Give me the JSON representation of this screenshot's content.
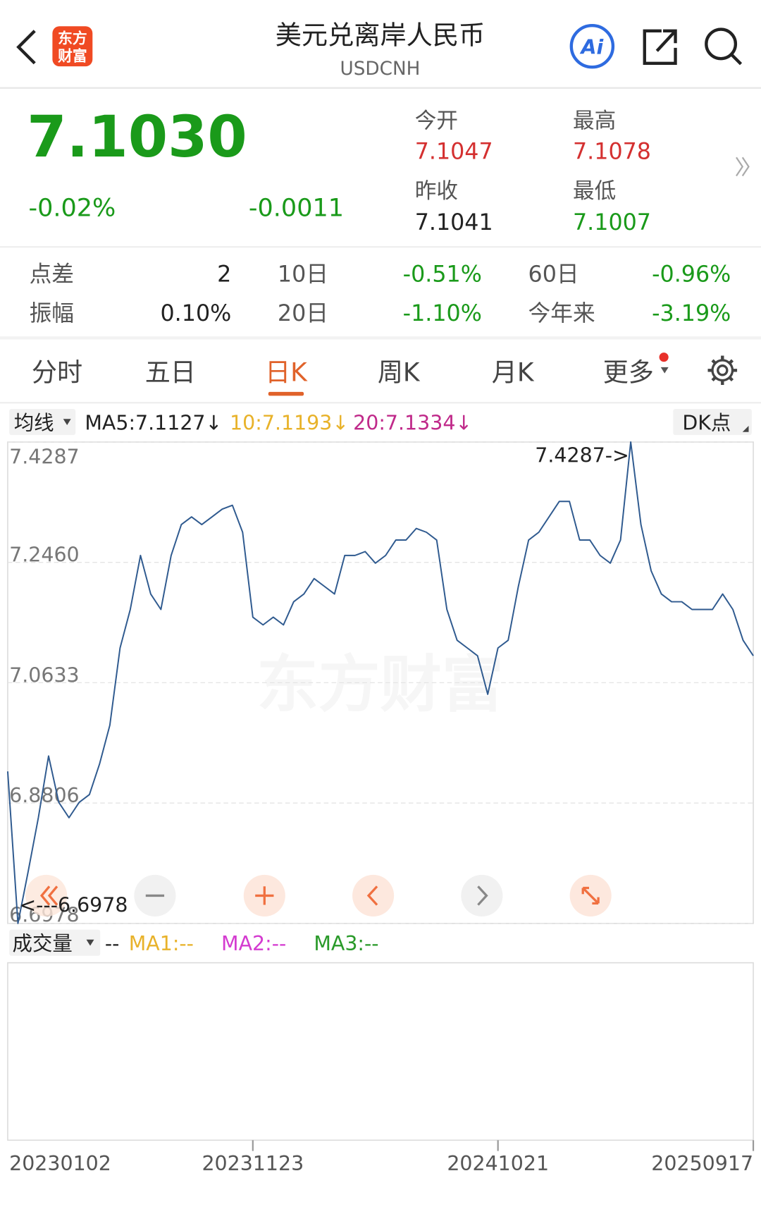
{
  "header": {
    "logo_lines": [
      "东方",
      "财富"
    ],
    "title": "美元兑离岸人民币",
    "subtitle": "USDCNH",
    "ai_button": "Ai"
  },
  "quote": {
    "price": "7.1030",
    "change_percent": "-0.02%",
    "change": "-0.0011",
    "color": "#1a9a1a",
    "stats": [
      {
        "label": "今开",
        "value": "7.1047",
        "color": "#d43030"
      },
      {
        "label": "最高",
        "value": "7.1078",
        "color": "#d43030"
      },
      {
        "label": "昨收",
        "value": "7.1041",
        "color": "#222222"
      },
      {
        "label": "最低",
        "value": "7.1007",
        "color": "#1a9a1a"
      }
    ]
  },
  "metrics": [
    [
      {
        "label": "点差",
        "value": "2",
        "color": "#222222"
      },
      {
        "label": "10日",
        "value": "-0.51%",
        "color": "#1a9a1a"
      },
      {
        "label": "60日",
        "value": "-0.96%",
        "color": "#1a9a1a"
      }
    ],
    [
      {
        "label": "振幅",
        "value": "0.10%",
        "color": "#222222"
      },
      {
        "label": "20日",
        "value": "-1.10%",
        "color": "#1a9a1a"
      },
      {
        "label": "今年来",
        "value": "-3.19%",
        "color": "#1a9a1a"
      }
    ]
  ],
  "tabs": {
    "items": [
      "分时",
      "五日",
      "日K",
      "周K",
      "月K",
      "更多"
    ],
    "active": 2
  },
  "indicators": {
    "selector": "均线",
    "items": [
      {
        "text": "MA5:7.1127↓",
        "color": "#222222"
      },
      {
        "text": "10:7.1193↓",
        "color": "#e8b22a"
      },
      {
        "text": "20:7.1334↓",
        "color": "#c02a8a"
      }
    ],
    "dk": "DK点"
  },
  "chart_data": {
    "type": "line",
    "watermark": "东方财富",
    "color": "#2f5a8f",
    "grid": true,
    "categories": [
      "20230102",
      null,
      null,
      null,
      null,
      null,
      null,
      null,
      null,
      null,
      null,
      null,
      null,
      null,
      null,
      null,
      null,
      null,
      null,
      null,
      null,
      null,
      null,
      null,
      "20231123",
      null,
      null,
      null,
      null,
      null,
      null,
      null,
      null,
      null,
      null,
      null,
      null,
      null,
      null,
      null,
      null,
      null,
      null,
      null,
      null,
      null,
      null,
      null,
      "20241021",
      null,
      null,
      null,
      null,
      null,
      null,
      null,
      null,
      null,
      null,
      null,
      null,
      null,
      null,
      null,
      null,
      null,
      null,
      null,
      null,
      null,
      null,
      null,
      null,
      "20250917"
    ],
    "values": [
      6.9286,
      6.6978,
      6.7763,
      6.8583,
      6.952,
      6.8817,
      6.8583,
      6.8817,
      6.8934,
      6.9403,
      6.9988,
      7.116,
      7.1745,
      7.2565,
      7.198,
      7.1745,
      7.2565,
      7.3034,
      7.3151,
      7.3034,
      7.3151,
      7.3268,
      7.3327,
      7.2917,
      7.1628,
      7.1511,
      7.1628,
      7.1511,
      7.1862,
      7.198,
      7.2214,
      7.2097,
      7.198,
      7.2565,
      7.2565,
      7.2624,
      7.2448,
      7.2565,
      7.2799,
      7.2799,
      7.2975,
      7.2917,
      7.2799,
      7.1745,
      7.1277,
      7.116,
      7.1042,
      7.0457,
      7.116,
      7.1277,
      7.2097,
      7.2799,
      7.2917,
      7.3151,
      7.3385,
      7.3385,
      7.2799,
      7.2799,
      7.2565,
      7.2448,
      7.2799,
      7.4287,
      7.3034,
      7.2331,
      7.198,
      7.1862,
      7.1862,
      7.1745,
      7.1745,
      7.1745,
      7.198,
      7.1745,
      7.1277,
      7.1042
    ],
    "ylim": [
      6.6978,
      7.4287
    ],
    "yticks": [
      6.6978,
      6.8806,
      7.0633,
      {
        "value": 7.246,
        "label": "7.2460"
      },
      7.4287
    ],
    "max_label": "7.4287->",
    "min_label": "<---6.6978"
  },
  "volume": {
    "selector": "成交量",
    "dash": "--",
    "items": [
      {
        "text": "MA1:--",
        "color": "#e8b22a"
      },
      {
        "text": "MA2:--",
        "color": "#d43bd0"
      },
      {
        "text": "MA3:--",
        "color": "#2a9a2a"
      }
    ]
  }
}
